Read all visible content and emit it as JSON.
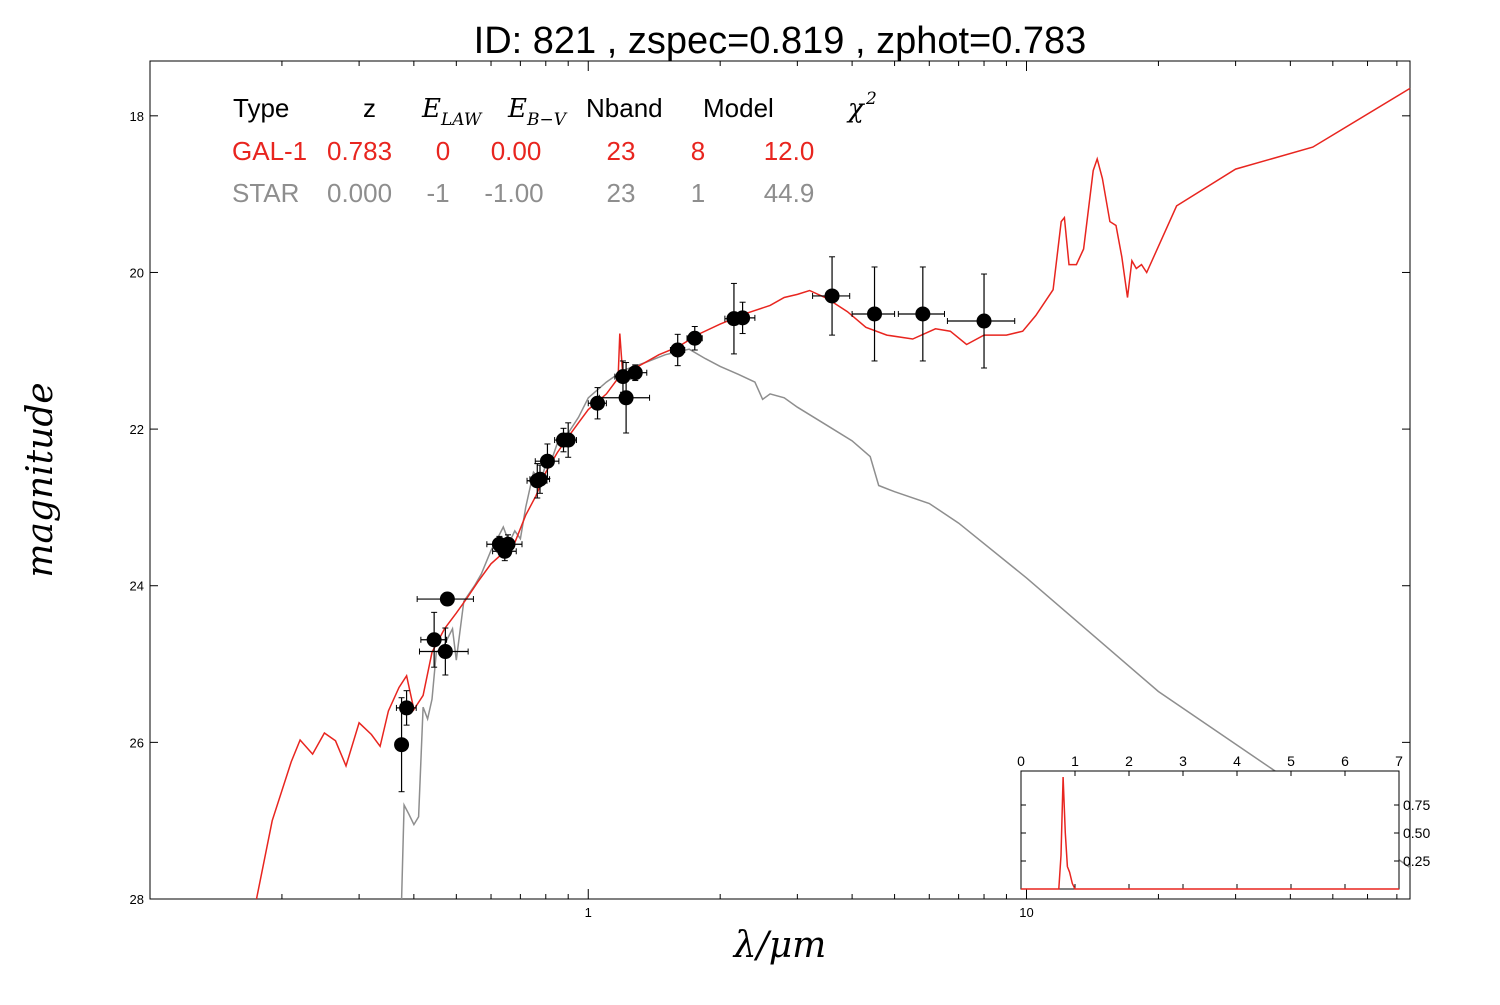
{
  "title": "ID:  821   , zspec=0.819 , zphot=0.783",
  "xlabel": "λ/μm",
  "ylabel": "magnitude",
  "colors": {
    "galaxy": "#e8251f",
    "star": "#8e8e8e",
    "points": "#000000"
  },
  "table": {
    "headers": [
      "Type",
      "z",
      "E",
      "LAW",
      "E",
      "B−V",
      "Nband",
      "Model",
      "χ",
      "2"
    ],
    "rows": [
      {
        "name": "galaxy",
        "cells": [
          "GAL-1",
          "0.783",
          "0",
          "0.00",
          "23",
          "8",
          "12.0"
        ]
      },
      {
        "name": "star",
        "cells": [
          "STAR",
          "0.000",
          "-1",
          "-1.00",
          "23",
          "1",
          "44.9"
        ]
      }
    ]
  },
  "chart_data": {
    "type": "scatter",
    "x_scale": "log",
    "xlim": [
      0.1,
      75
    ],
    "ylim": [
      28,
      17.3
    ],
    "y_inverted": true,
    "y_ticks": [
      "18",
      "20",
      "22",
      "24",
      "26",
      "28"
    ],
    "x_ticks": [
      "1",
      "10"
    ],
    "photometry": [
      {
        "x": 0.375,
        "y": 26.03,
        "xerr": 0.0,
        "yerr": 0.6
      },
      {
        "x": 0.385,
        "y": 25.56,
        "xerr": 0.02,
        "yerr": 0.22
      },
      {
        "x": 0.445,
        "y": 24.69,
        "xerr": 0.03,
        "yerr": 0.35
      },
      {
        "x": 0.477,
        "y": 24.17,
        "xerr": 0.07,
        "yerr": 0.08
      },
      {
        "x": 0.472,
        "y": 24.84,
        "xerr": 0.06,
        "yerr": 0.3
      },
      {
        "x": 0.627,
        "y": 23.47,
        "xerr": 0.04,
        "yerr": 0.1
      },
      {
        "x": 0.645,
        "y": 23.56,
        "xerr": 0.04,
        "yerr": 0.12
      },
      {
        "x": 0.656,
        "y": 23.47,
        "xerr": 0.05,
        "yerr": 0.12
      },
      {
        "x": 0.765,
        "y": 22.66,
        "xerr": 0.04,
        "yerr": 0.22
      },
      {
        "x": 0.776,
        "y": 22.64,
        "xerr": 0.04,
        "yerr": 0.18
      },
      {
        "x": 0.807,
        "y": 22.41,
        "xerr": 0.05,
        "yerr": 0.22
      },
      {
        "x": 0.878,
        "y": 22.14,
        "xerr": 0.04,
        "yerr": 0.15
      },
      {
        "x": 0.9,
        "y": 22.14,
        "xerr": 0.04,
        "yerr": 0.22
      },
      {
        "x": 1.05,
        "y": 21.67,
        "xerr": 0.05,
        "yerr": 0.2
      },
      {
        "x": 1.2,
        "y": 21.33,
        "xerr": 0.05,
        "yerr": 0.2
      },
      {
        "x": 1.22,
        "y": 21.6,
        "xerr": 0.16,
        "yerr": 0.45
      },
      {
        "x": 1.28,
        "y": 21.28,
        "xerr": 0.08,
        "yerr": 0.1
      },
      {
        "x": 1.6,
        "y": 20.99,
        "xerr": 0.06,
        "yerr": 0.2
      },
      {
        "x": 1.75,
        "y": 20.84,
        "xerr": 0.07,
        "yerr": 0.15
      },
      {
        "x": 2.15,
        "y": 20.59,
        "xerr": 0.1,
        "yerr": 0.45
      },
      {
        "x": 2.25,
        "y": 20.58,
        "xerr": 0.15,
        "yerr": 0.2
      },
      {
        "x": 3.6,
        "y": 20.3,
        "xerr": 0.35,
        "yerr": 0.5
      },
      {
        "x": 4.5,
        "y": 20.53,
        "xerr": 0.5,
        "yerr": 0.6
      },
      {
        "x": 5.8,
        "y": 20.53,
        "xerr": 0.7,
        "yerr": 0.6
      },
      {
        "x": 8.0,
        "y": 20.62,
        "xerr": 1.4,
        "yerr": 0.6
      }
    ],
    "series": [
      {
        "name": "GAL-1",
        "color": "#e8251f",
        "points": [
          [
            0.175,
            28.0
          ],
          [
            0.19,
            27.0
          ],
          [
            0.21,
            26.25
          ],
          [
            0.22,
            25.97
          ],
          [
            0.235,
            26.15
          ],
          [
            0.25,
            25.88
          ],
          [
            0.265,
            25.98
          ],
          [
            0.28,
            26.3
          ],
          [
            0.3,
            25.75
          ],
          [
            0.32,
            25.9
          ],
          [
            0.335,
            26.05
          ],
          [
            0.35,
            25.6
          ],
          [
            0.37,
            25.3
          ],
          [
            0.385,
            25.15
          ],
          [
            0.4,
            25.58
          ],
          [
            0.42,
            25.4
          ],
          [
            0.44,
            24.85
          ],
          [
            0.47,
            24.55
          ],
          [
            0.5,
            24.35
          ],
          [
            0.53,
            24.15
          ],
          [
            0.56,
            23.95
          ],
          [
            0.6,
            23.72
          ],
          [
            0.64,
            23.58
          ],
          [
            0.68,
            23.45
          ],
          [
            0.72,
            23.1
          ],
          [
            0.76,
            22.85
          ],
          [
            0.8,
            22.55
          ],
          [
            0.85,
            22.3
          ],
          [
            0.9,
            22.1
          ],
          [
            0.95,
            21.92
          ],
          [
            1.0,
            21.75
          ],
          [
            1.05,
            21.65
          ],
          [
            1.1,
            21.55
          ],
          [
            1.17,
            21.35
          ],
          [
            1.18,
            20.78
          ],
          [
            1.2,
            21.35
          ],
          [
            1.3,
            21.2
          ],
          [
            1.45,
            21.05
          ],
          [
            1.6,
            20.95
          ],
          [
            1.8,
            20.78
          ],
          [
            2.0,
            20.66
          ],
          [
            2.3,
            20.52
          ],
          [
            2.6,
            20.42
          ],
          [
            2.8,
            20.32
          ],
          [
            3.0,
            20.28
          ],
          [
            3.2,
            20.23
          ],
          [
            3.5,
            20.33
          ],
          [
            3.9,
            20.5
          ],
          [
            4.3,
            20.7
          ],
          [
            4.8,
            20.8
          ],
          [
            5.5,
            20.85
          ],
          [
            6.2,
            20.72
          ],
          [
            6.7,
            20.75
          ],
          [
            7.3,
            20.92
          ],
          [
            8.0,
            20.8
          ],
          [
            9.0,
            20.8
          ],
          [
            9.8,
            20.75
          ],
          [
            10.5,
            20.55
          ],
          [
            11.5,
            20.22
          ],
          [
            12.0,
            19.35
          ],
          [
            12.2,
            19.3
          ],
          [
            12.5,
            19.9
          ],
          [
            13.0,
            19.9
          ],
          [
            13.5,
            19.7
          ],
          [
            14.2,
            18.7
          ],
          [
            14.5,
            18.55
          ],
          [
            14.9,
            18.8
          ],
          [
            15.5,
            19.35
          ],
          [
            16.0,
            19.4
          ],
          [
            16.5,
            19.8
          ],
          [
            17.0,
            20.32
          ],
          [
            17.4,
            19.85
          ],
          [
            17.8,
            19.95
          ],
          [
            18.3,
            19.9
          ],
          [
            18.8,
            20.0
          ],
          [
            22.0,
            19.15
          ],
          [
            30.0,
            18.68
          ],
          [
            45.0,
            18.4
          ],
          [
            75.0,
            17.65
          ]
        ]
      },
      {
        "name": "STAR",
        "color": "#8e8e8e",
        "points": [
          [
            0.375,
            28.0
          ],
          [
            0.38,
            26.8
          ],
          [
            0.39,
            26.92
          ],
          [
            0.4,
            27.05
          ],
          [
            0.41,
            26.95
          ],
          [
            0.42,
            25.55
          ],
          [
            0.43,
            25.7
          ],
          [
            0.44,
            25.45
          ],
          [
            0.45,
            24.85
          ],
          [
            0.47,
            24.75
          ],
          [
            0.49,
            24.55
          ],
          [
            0.5,
            24.95
          ],
          [
            0.52,
            24.2
          ],
          [
            0.55,
            24.0
          ],
          [
            0.57,
            23.85
          ],
          [
            0.6,
            23.55
          ],
          [
            0.62,
            23.4
          ],
          [
            0.64,
            23.25
          ],
          [
            0.66,
            23.45
          ],
          [
            0.68,
            23.3
          ],
          [
            0.7,
            23.4
          ],
          [
            0.72,
            23.0
          ],
          [
            0.75,
            22.55
          ],
          [
            0.78,
            22.65
          ],
          [
            0.8,
            22.45
          ],
          [
            0.83,
            22.35
          ],
          [
            0.86,
            22.1
          ],
          [
            0.9,
            22.05
          ],
          [
            0.95,
            21.85
          ],
          [
            1.0,
            21.6
          ],
          [
            1.1,
            21.4
          ],
          [
            1.2,
            21.25
          ],
          [
            1.35,
            21.15
          ],
          [
            1.5,
            21.05
          ],
          [
            1.7,
            20.98
          ],
          [
            1.85,
            21.1
          ],
          [
            2.0,
            21.2
          ],
          [
            2.2,
            21.3
          ],
          [
            2.4,
            21.4
          ],
          [
            2.5,
            21.62
          ],
          [
            2.6,
            21.55
          ],
          [
            2.8,
            21.6
          ],
          [
            3.0,
            21.72
          ],
          [
            3.5,
            21.95
          ],
          [
            4.0,
            22.15
          ],
          [
            4.4,
            22.35
          ],
          [
            4.6,
            22.72
          ],
          [
            5.0,
            22.8
          ],
          [
            6.0,
            22.95
          ],
          [
            7.0,
            23.2
          ],
          [
            10.0,
            23.9
          ],
          [
            20.0,
            25.35
          ],
          [
            40.0,
            26.5
          ],
          [
            75.0,
            27.6
          ]
        ]
      }
    ],
    "inset": {
      "type": "line",
      "xlim": [
        0,
        7
      ],
      "ylim": [
        0,
        1.0
      ],
      "x_ticks": [
        "0",
        "1",
        "2",
        "3",
        "4",
        "5",
        "6",
        "7"
      ],
      "y_ticks": [
        "0.25",
        "0.50",
        "0.75"
      ],
      "pdf": [
        [
          0.0,
          0.0
        ],
        [
          0.7,
          0.0
        ],
        [
          0.74,
          0.3
        ],
        [
          0.78,
          1.0
        ],
        [
          0.82,
          0.5
        ],
        [
          0.86,
          0.2
        ],
        [
          0.9,
          0.15
        ],
        [
          0.95,
          0.05
        ],
        [
          1.0,
          0.0
        ],
        [
          7.0,
          0.0
        ]
      ]
    }
  }
}
